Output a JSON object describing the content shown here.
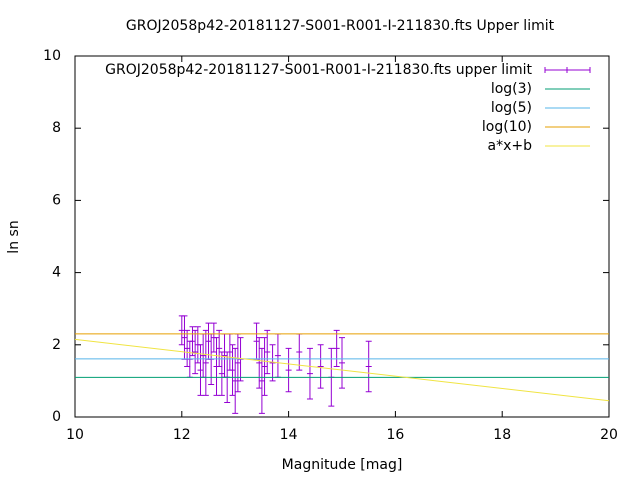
{
  "chart_data": {
    "type": "errorbar",
    "title": "GROJ2058p42-20181127-S001-R001-I-211830.fts Upper limit",
    "xlabel": "Magnitude [mag]",
    "ylabel": "ln sn",
    "xlim": [
      10,
      20
    ],
    "ylim": [
      0,
      10
    ],
    "xticks": [
      10,
      12,
      14,
      16,
      18,
      20
    ],
    "yticks": [
      0,
      2,
      4,
      6,
      8,
      10
    ],
    "grid": false,
    "legend": "top-right",
    "series": [
      {
        "name": "GROJ2058p42-20181127-S001-R001-I-211830.fts upper limit",
        "color": "#9400d3",
        "type": "errorbar",
        "x": [
          12.0,
          12.05,
          12.1,
          12.15,
          12.2,
          12.25,
          12.3,
          12.35,
          12.4,
          12.45,
          12.5,
          12.55,
          12.6,
          12.65,
          12.7,
          12.75,
          12.8,
          12.85,
          12.9,
          12.95,
          13.0,
          13.05,
          13.1,
          13.4,
          13.45,
          13.5,
          13.55,
          13.6,
          13.7,
          13.8,
          14.0,
          14.2,
          14.4,
          14.6,
          14.8,
          14.9,
          15.0,
          15.5
        ],
        "values": [
          2.4,
          2.2,
          1.9,
          1.6,
          2.1,
          1.8,
          2.0,
          1.3,
          1.7,
          1.5,
          2.1,
          1.6,
          2.2,
          1.4,
          1.9,
          1.2,
          1.7,
          1.1,
          1.8,
          1.3,
          1.0,
          1.5,
          1.6,
          2.1,
          1.5,
          1.0,
          1.4,
          1.8,
          1.5,
          1.7,
          1.3,
          1.8,
          1.2,
          1.4,
          1.1,
          1.9,
          1.5,
          1.4
        ],
        "errors": [
          0.4,
          0.6,
          0.5,
          0.5,
          0.4,
          0.6,
          0.5,
          0.7,
          0.6,
          0.9,
          0.5,
          0.7,
          0.4,
          0.8,
          0.5,
          0.6,
          0.6,
          0.7,
          0.5,
          0.7,
          0.9,
          0.8,
          0.6,
          0.5,
          0.7,
          0.9,
          0.8,
          0.6,
          0.5,
          0.6,
          0.6,
          0.5,
          0.7,
          0.6,
          0.8,
          0.5,
          0.7,
          0.7
        ]
      },
      {
        "name": "log(3)",
        "color": "#009e73",
        "type": "line",
        "x": [
          10,
          20
        ],
        "values": [
          1.0986,
          1.0986
        ]
      },
      {
        "name": "log(5)",
        "color": "#56b4e9",
        "type": "line",
        "x": [
          10,
          20
        ],
        "values": [
          1.6094,
          1.6094
        ]
      },
      {
        "name": "log(10)",
        "color": "#e69f00",
        "type": "line",
        "x": [
          10,
          20
        ],
        "values": [
          2.3026,
          2.3026
        ]
      },
      {
        "name": "a*x+b",
        "color": "#f0e442",
        "type": "line",
        "x": [
          10,
          20
        ],
        "values": [
          2.15,
          0.45
        ]
      }
    ]
  }
}
